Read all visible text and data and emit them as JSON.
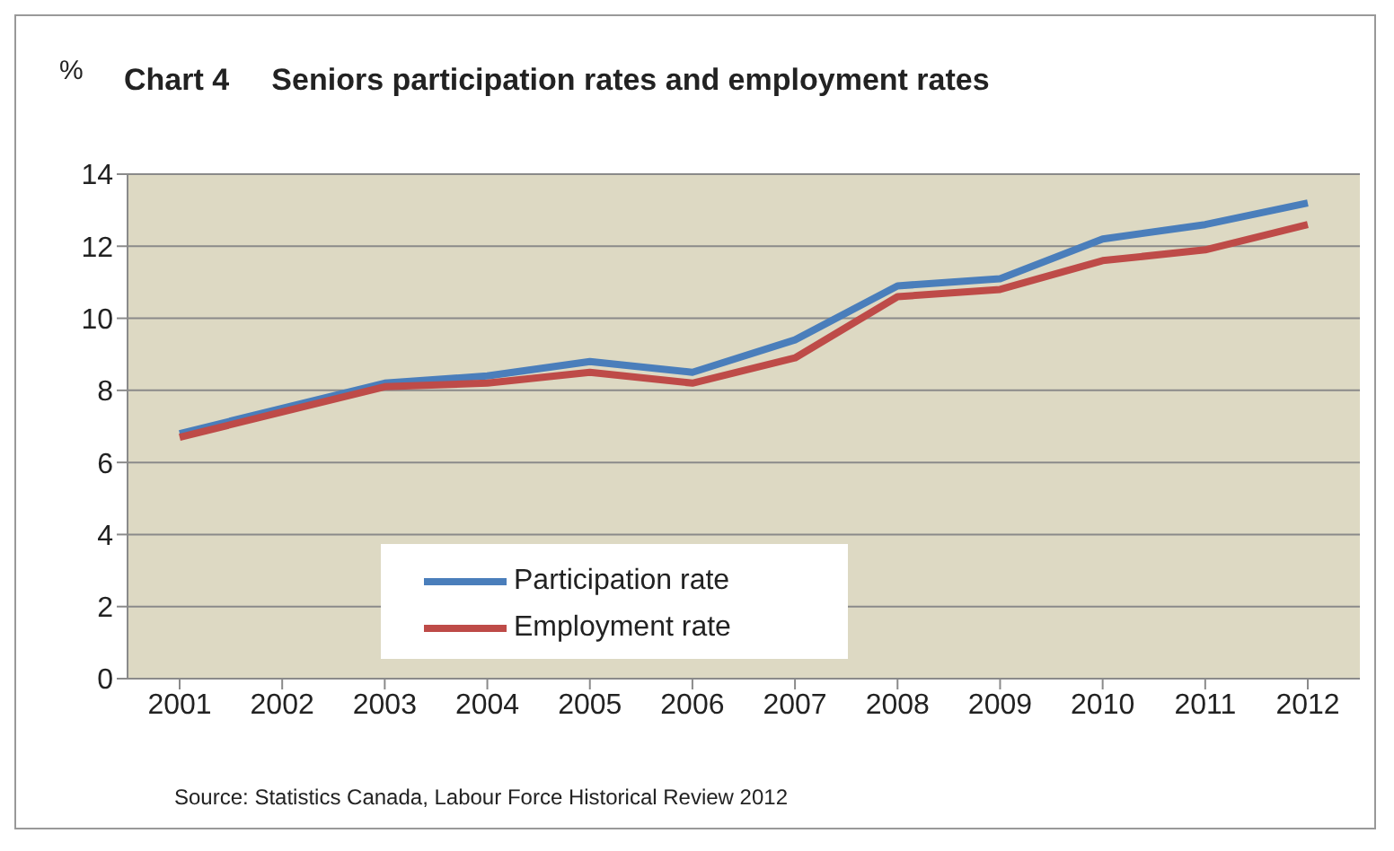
{
  "chart_data": {
    "type": "line",
    "title": "Chart 4     Seniors participation rates and employment rates",
    "ylabel": "%",
    "categories": [
      "2001",
      "2002",
      "2003",
      "2004",
      "2005",
      "2006",
      "2007",
      "2008",
      "2009",
      "2010",
      "2011",
      "2012"
    ],
    "series": [
      {
        "name": "Participation rate",
        "color": "#4a7ebb",
        "values": [
          6.8,
          7.5,
          8.2,
          8.4,
          8.8,
          8.5,
          9.4,
          10.9,
          11.1,
          12.2,
          12.6,
          13.2
        ]
      },
      {
        "name": "Employment rate",
        "color": "#be4b48",
        "values": [
          6.7,
          7.4,
          8.1,
          8.2,
          8.5,
          8.2,
          8.9,
          10.6,
          10.8,
          11.6,
          11.9,
          12.6
        ]
      }
    ],
    "ylim": [
      0,
      14
    ],
    "yticks": [
      0,
      2,
      4,
      6,
      8,
      10,
      12,
      14
    ],
    "grid": "y",
    "legend": "bottom left",
    "marker": "none",
    "line_style": "solid",
    "annotations": [
      "Source: Statistics Canada, Labour Force Historical Review 2012"
    ]
  }
}
